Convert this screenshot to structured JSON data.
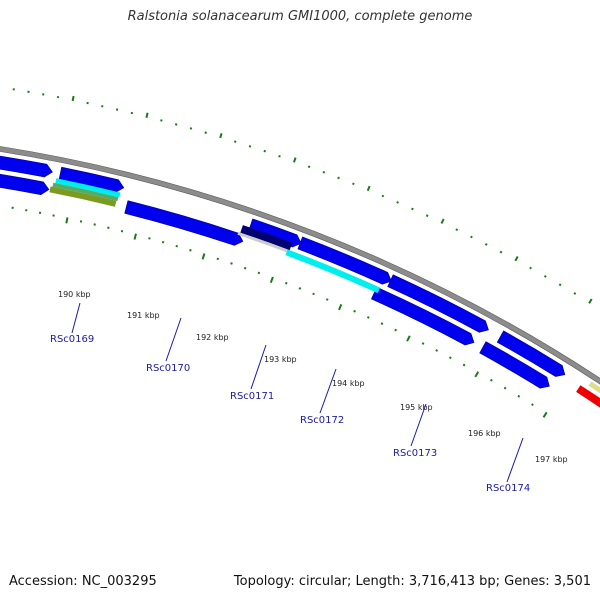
{
  "title": "Ralstonia solanacearum GMI1000, complete genome",
  "footer": {
    "accession": "Accession: NC_003295",
    "genome_info": "Topology: circular; Length: 3,716,413 bp; Genes: 3,501"
  },
  "colors": {
    "backbone": "#8c8c8c",
    "gene": "#0000ee",
    "tick": "#1a7a1a",
    "cyan": "#00eeee",
    "olive": "#7a9a20",
    "navy": "#000070",
    "red": "#ee0000",
    "label": "#1a1aaa"
  },
  "kbp_labels": [
    "190 kbp",
    "191 kbp",
    "192 kbp",
    "193 kbp",
    "194 kbp",
    "195 kbp",
    "196 kbp",
    "197 kbp"
  ],
  "gene_labels": [
    "RSc0169",
    "RSc0170",
    "RSc0171",
    "RSc0172",
    "RSc0173",
    "RSc0174"
  ]
}
